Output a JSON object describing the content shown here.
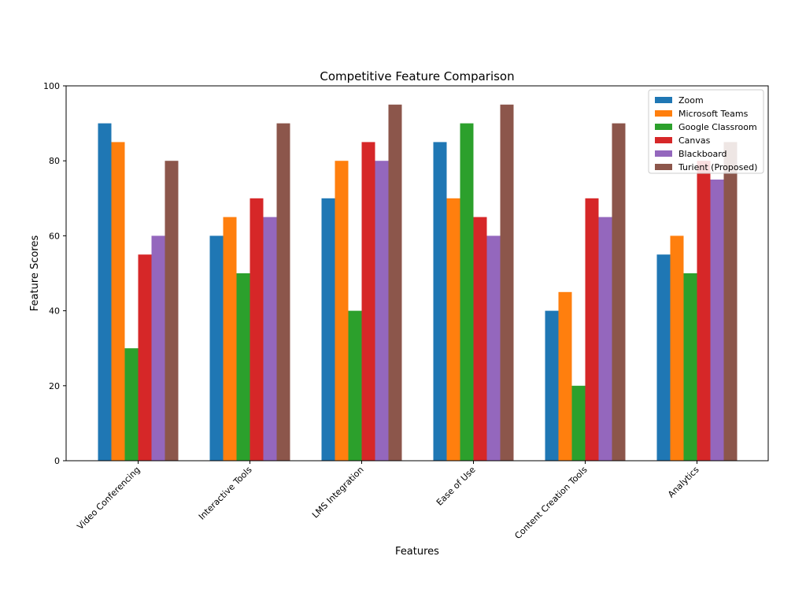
{
  "chart_data": {
    "type": "bar",
    "title": "Competitive Feature Comparison",
    "xlabel": "Features",
    "ylabel": "Feature Scores",
    "ylim": [
      0,
      100
    ],
    "yticks": [
      0,
      20,
      40,
      60,
      80,
      100
    ],
    "grid": false,
    "legend_position": "top-right",
    "categories": [
      "Video Conferencing",
      "Interactive Tools",
      "LMS Integration",
      "Ease of Use",
      "Content Creation Tools",
      "Analytics"
    ],
    "series": [
      {
        "name": "Zoom",
        "color": "#1f77b4",
        "values": [
          90,
          60,
          70,
          85,
          40,
          55
        ]
      },
      {
        "name": "Microsoft Teams",
        "color": "#ff7f0e",
        "values": [
          85,
          65,
          80,
          70,
          45,
          60
        ]
      },
      {
        "name": "Google Classroom",
        "color": "#2ca02c",
        "values": [
          30,
          50,
          40,
          90,
          20,
          50
        ]
      },
      {
        "name": "Canvas",
        "color": "#d62728",
        "values": [
          55,
          70,
          85,
          65,
          70,
          80
        ]
      },
      {
        "name": "Blackboard",
        "color": "#9467bd",
        "values": [
          60,
          65,
          80,
          60,
          65,
          75
        ]
      },
      {
        "name": "Turient (Proposed)",
        "color": "#8c564b",
        "values": [
          80,
          90,
          95,
          95,
          90,
          85
        ]
      }
    ]
  }
}
